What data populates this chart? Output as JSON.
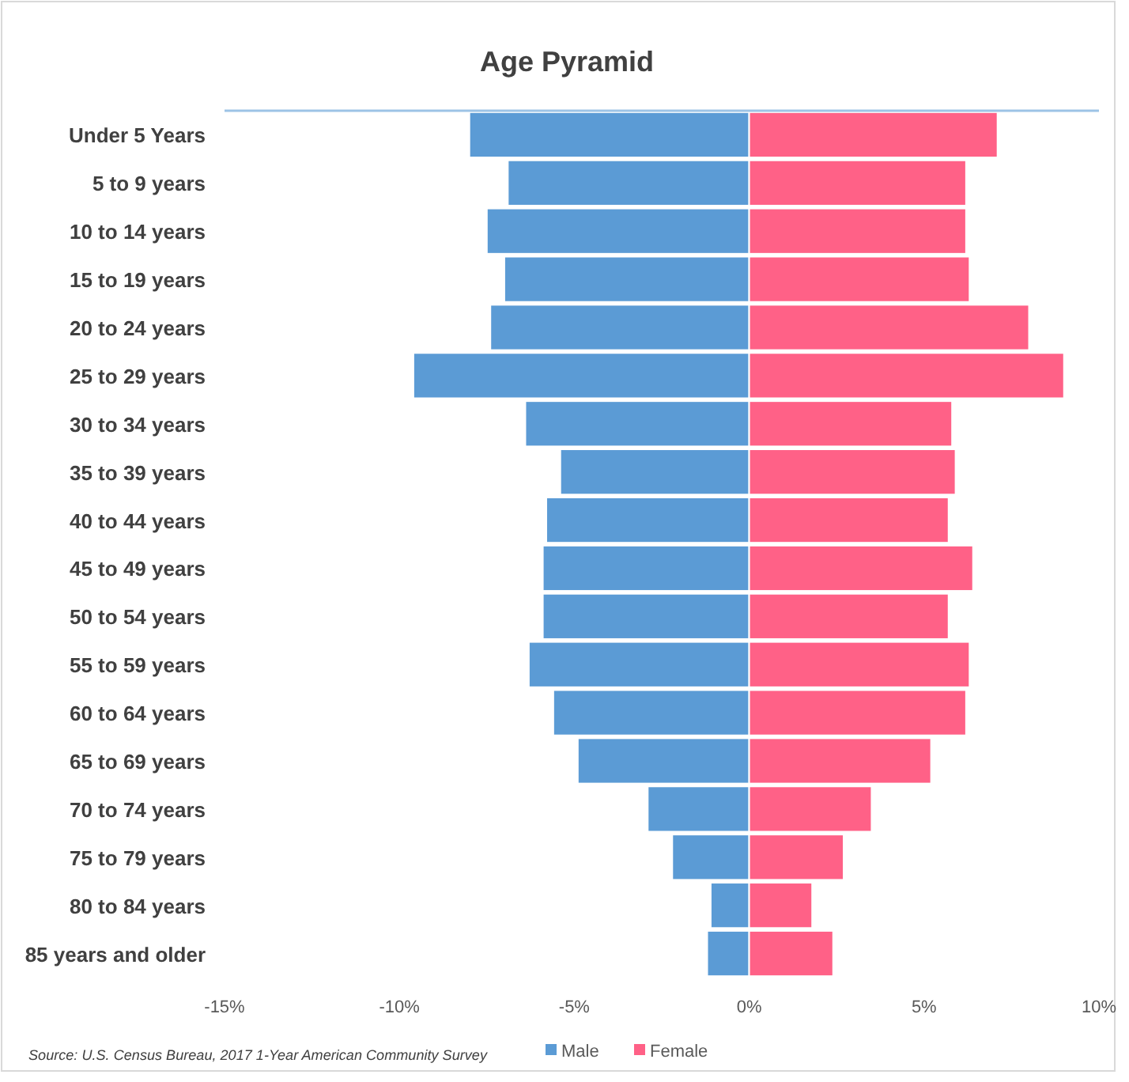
{
  "chart_data": {
    "type": "bar",
    "orientation": "horizontal",
    "stacked": true,
    "title": "Age Pyramid",
    "categories": [
      "Under 5 Years",
      "5 to 9 years",
      "10 to 14 years",
      "15 to 19 years",
      "20 to 24 years",
      "25 to 29 years",
      "30 to 34 years",
      "35 to 39 years",
      "40 to 44 years",
      "45 to 49 years",
      "50 to 54 years",
      "55 to 59 years",
      "60 to 64 years",
      "65 to 69 years",
      "70 to 74 years",
      "75 to 79 years",
      "80 to 84 years",
      "85 years and older"
    ],
    "series": [
      {
        "name": "Male",
        "color": "#5b9bd5",
        "values": [
          -8.0,
          -6.9,
          -7.5,
          -7.0,
          -7.4,
          -9.6,
          -6.4,
          -5.4,
          -5.8,
          -5.9,
          -5.9,
          -6.3,
          -5.6,
          -4.9,
          -2.9,
          -2.2,
          -1.1,
          -1.2
        ]
      },
      {
        "name": "Female",
        "color": "#ff6187",
        "values": [
          7.1,
          6.2,
          6.2,
          6.3,
          8.0,
          9.0,
          5.8,
          5.9,
          5.7,
          6.4,
          5.7,
          6.3,
          6.2,
          5.2,
          3.5,
          2.7,
          1.8,
          2.4
        ]
      }
    ],
    "xlim": [
      -15,
      10
    ],
    "xticks": [
      {
        "value": -15,
        "label": "-15%"
      },
      {
        "value": -10,
        "label": "-10%"
      },
      {
        "value": -5,
        "label": "-5%"
      },
      {
        "value": 0,
        "label": "0%"
      },
      {
        "value": 5,
        "label": "5%"
      },
      {
        "value": 10,
        "label": "10%"
      }
    ],
    "grid": false,
    "legend": "bottom",
    "annotations": [
      "Source: U.S. Census Bureau, 2017 1-Year American Community Survey"
    ]
  }
}
